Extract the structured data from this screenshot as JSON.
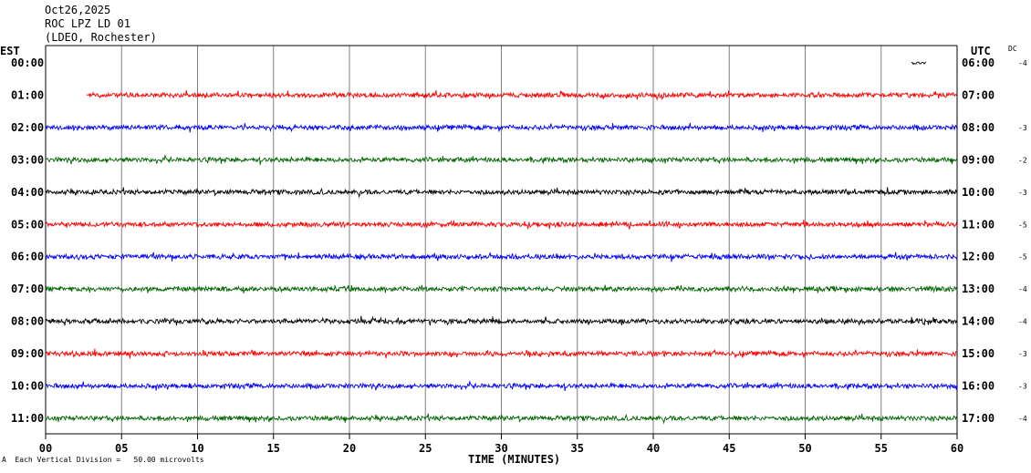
{
  "header": {
    "date": "Oct26,2025",
    "station": "ROC LPZ LD 01",
    "network": "(LDEO, Rochester)"
  },
  "left_tz": "EST",
  "right_tz": "UTC",
  "dc_label": "DC",
  "footer": {
    "mark": "A",
    "scale": "Each Vertical Division =   50.00 microvolts"
  },
  "chart_data": {
    "type": "line",
    "title": "",
    "xlabel": "TIME (MINUTES)",
    "ylabel": "",
    "xlim": [
      0,
      60
    ],
    "x_ticks": [
      "00",
      "05",
      "10",
      "15",
      "20",
      "25",
      "30",
      "35",
      "40",
      "45",
      "50",
      "55",
      "60"
    ],
    "grid": true,
    "series_colors": [
      "#ff0000",
      "#0000ff",
      "#006400",
      "#000000"
    ],
    "rows": [
      {
        "est": "00:00",
        "utc": "06:00",
        "dc": "-4",
        "color": "#000000",
        "start_min": 57.0,
        "end_min": 58.0
      },
      {
        "est": "01:00",
        "utc": "07:00",
        "dc": "",
        "color": "#ff0000",
        "start_min": 2.7,
        "end_min": 60
      },
      {
        "est": "02:00",
        "utc": "08:00",
        "dc": "-3",
        "color": "#0000ff",
        "start_min": 0,
        "end_min": 60
      },
      {
        "est": "03:00",
        "utc": "09:00",
        "dc": "-2",
        "color": "#006400",
        "start_min": 0,
        "end_min": 60
      },
      {
        "est": "04:00",
        "utc": "10:00",
        "dc": "-3",
        "color": "#000000",
        "start_min": 0,
        "end_min": 60
      },
      {
        "est": "05:00",
        "utc": "11:00",
        "dc": "-5",
        "color": "#ff0000",
        "start_min": 0,
        "end_min": 60
      },
      {
        "est": "06:00",
        "utc": "12:00",
        "dc": "-5",
        "color": "#0000ff",
        "start_min": 0,
        "end_min": 60
      },
      {
        "est": "07:00",
        "utc": "13:00",
        "dc": "-4",
        "color": "#006400",
        "start_min": 0,
        "end_min": 60
      },
      {
        "est": "08:00",
        "utc": "14:00",
        "dc": "-4",
        "color": "#000000",
        "start_min": 0,
        "end_min": 60
      },
      {
        "est": "09:00",
        "utc": "15:00",
        "dc": "-3",
        "color": "#ff0000",
        "start_min": 0,
        "end_min": 60
      },
      {
        "est": "10:00",
        "utc": "16:00",
        "dc": "-3",
        "color": "#0000ff",
        "start_min": 0,
        "end_min": 60
      },
      {
        "est": "11:00",
        "utc": "17:00",
        "dc": "-4",
        "color": "#006400",
        "start_min": 0,
        "end_min": 60
      }
    ]
  }
}
